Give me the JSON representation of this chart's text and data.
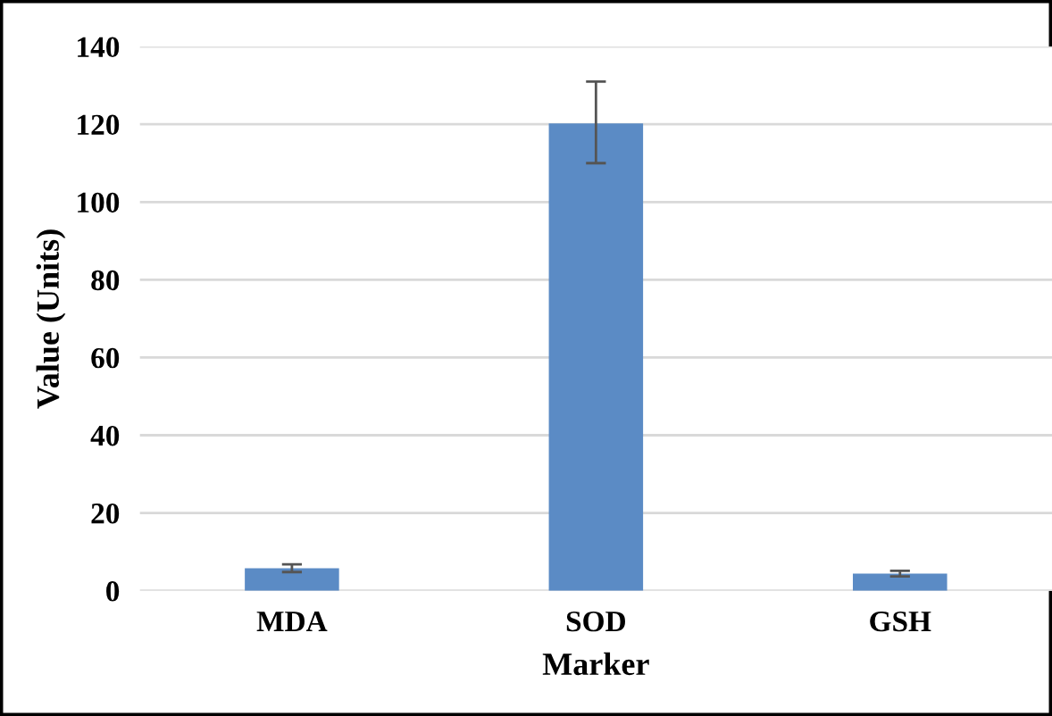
{
  "chart_data": {
    "type": "bar",
    "xlabel": "Marker",
    "ylabel": "Value (Units)",
    "categories": [
      "MDA",
      "SOD",
      "GSH"
    ],
    "values": [
      5.8,
      120.2,
      4.4
    ],
    "errors": [
      1,
      [
        110,
        131
      ],
      0.7
    ],
    "color": "#5b8bc5",
    "ylim": [
      0,
      140
    ],
    "yticks": [
      0,
      20,
      40,
      60,
      80,
      100,
      120,
      140
    ],
    "grid": "y"
  }
}
